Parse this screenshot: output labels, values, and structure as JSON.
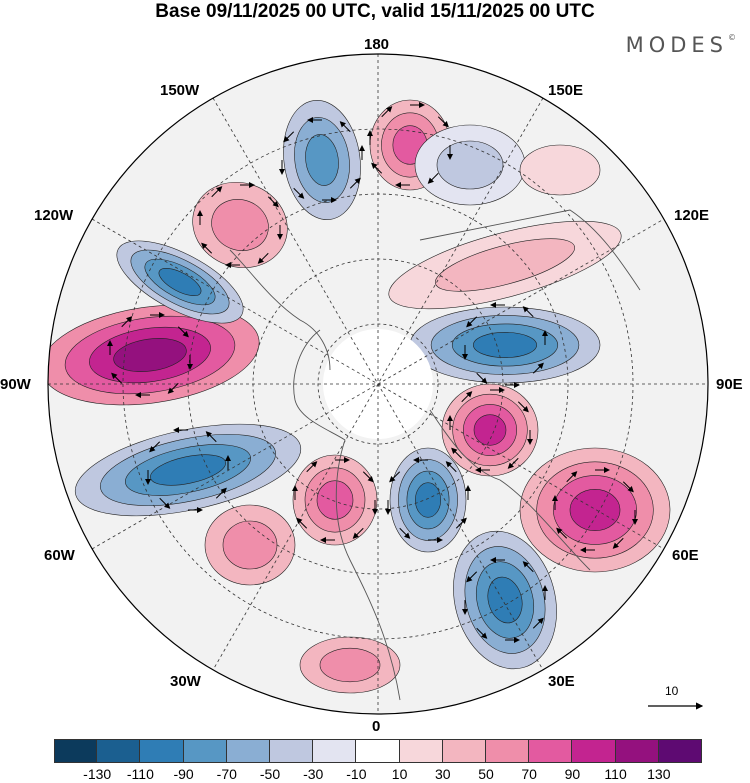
{
  "header": {
    "title": "Base 09/11/2025 00 UTC, valid 15/11/2025 00 UTC",
    "brand": "MODES",
    "brand_mark": "©"
  },
  "map": {
    "projection": "north-polar-stereographic",
    "longitude_labels": {
      "top": "180",
      "bottom": "0",
      "left": "90W",
      "right": "90E",
      "upper_left": "150W",
      "upper_right": "150E",
      "mid_upper_left": "120W",
      "mid_upper_right": "120E",
      "mid_lower_left": "60W",
      "mid_lower_right": "60E",
      "lower_left": "30W",
      "lower_right": "30E"
    },
    "reference_vector": {
      "label": "10"
    }
  },
  "colorbar": {
    "colors": [
      "#0c3a5c",
      "#1b5f90",
      "#2f7db5",
      "#5797c4",
      "#8aaed3",
      "#bfc8e0",
      "#e3e4f1",
      "#ffffff",
      "#f7d7db",
      "#f3b6c0",
      "#ef8eaa",
      "#e35aa0",
      "#c32490",
      "#94117e",
      "#5e0a72"
    ],
    "ticks": [
      "-130",
      "-110",
      "-90",
      "-70",
      "-50",
      "-30",
      "-10",
      "10",
      "30",
      "50",
      "70",
      "90",
      "110",
      "130"
    ]
  }
}
